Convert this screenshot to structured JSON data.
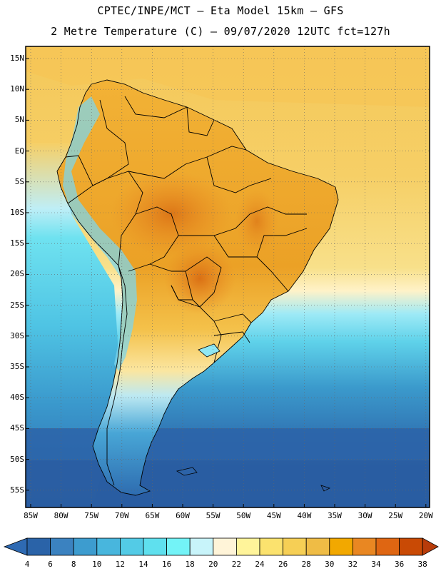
{
  "header": {
    "line1": "CPTEC/INPE/MCT –  Eta Model 15km – GFS",
    "line2": "2 Metre Temperature (C) – 09/07/2020 12UTC fct=127h"
  },
  "map": {
    "lat_labels": [
      "15N",
      "10N",
      "5N",
      "EQ",
      "5S",
      "10S",
      "15S",
      "20S",
      "25S",
      "30S",
      "35S",
      "40S",
      "45S",
      "50S",
      "55S"
    ],
    "lon_labels": [
      "85W",
      "80W",
      "75W",
      "70W",
      "65W",
      "60W",
      "55W",
      "50W",
      "45W",
      "40W",
      "35W",
      "30W",
      "25W",
      "20W"
    ],
    "ocean_color": "#2f6fb0",
    "land_color": "#f0b030",
    "border_color": "#000000"
  },
  "colorbar": {
    "labels": [
      "4",
      "6",
      "8",
      "10",
      "12",
      "14",
      "16",
      "18",
      "20",
      "22",
      "24",
      "26",
      "28",
      "30",
      "32",
      "34",
      "36",
      "38"
    ],
    "colors": [
      "#2a63a8",
      "#3b82c0",
      "#3d9ccf",
      "#48b6dd",
      "#53cbe6",
      "#5fe0ee",
      "#73f3f7",
      "#c8f4fa",
      "#fff4d8",
      "#fff49a",
      "#fbe26e",
      "#f6cf55",
      "#efbc45",
      "#f2a800",
      "#e98722",
      "#df6612",
      "#c94a05"
    ],
    "min_arrow": "#2e6ab3",
    "max_arrow": "#b83c0a"
  }
}
